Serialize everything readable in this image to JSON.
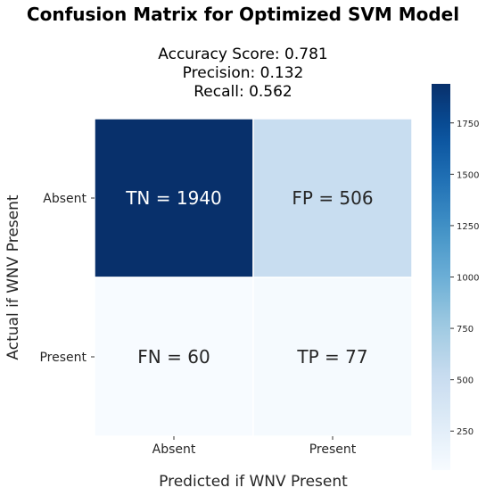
{
  "chart_data": {
    "type": "heatmap",
    "title": "Confusion Matrix for Optimized SVM Model",
    "subtitle_lines": [
      "Accuracy Score: 0.781",
      "Precision: 0.132",
      "Recall: 0.562"
    ],
    "xlabel": "Predicted if WNV Present",
    "ylabel": "Actual if WNV Present",
    "x_categories": [
      "Absent",
      "Present"
    ],
    "y_categories": [
      "Absent",
      "Present"
    ],
    "values": [
      [
        1940,
        506
      ],
      [
        60,
        77
      ]
    ],
    "cell_labels": [
      [
        "TN = 1940",
        "FP = 506"
      ],
      [
        "FN = 60",
        "TP = 77"
      ]
    ],
    "colormap": "Blues",
    "colors": {
      "min": "#f7fbff",
      "max": "#08306b"
    },
    "colorbar": {
      "range": [
        60,
        1940
      ],
      "ticks": [
        250,
        500,
        750,
        1000,
        1250,
        1500,
        1750
      ]
    }
  }
}
